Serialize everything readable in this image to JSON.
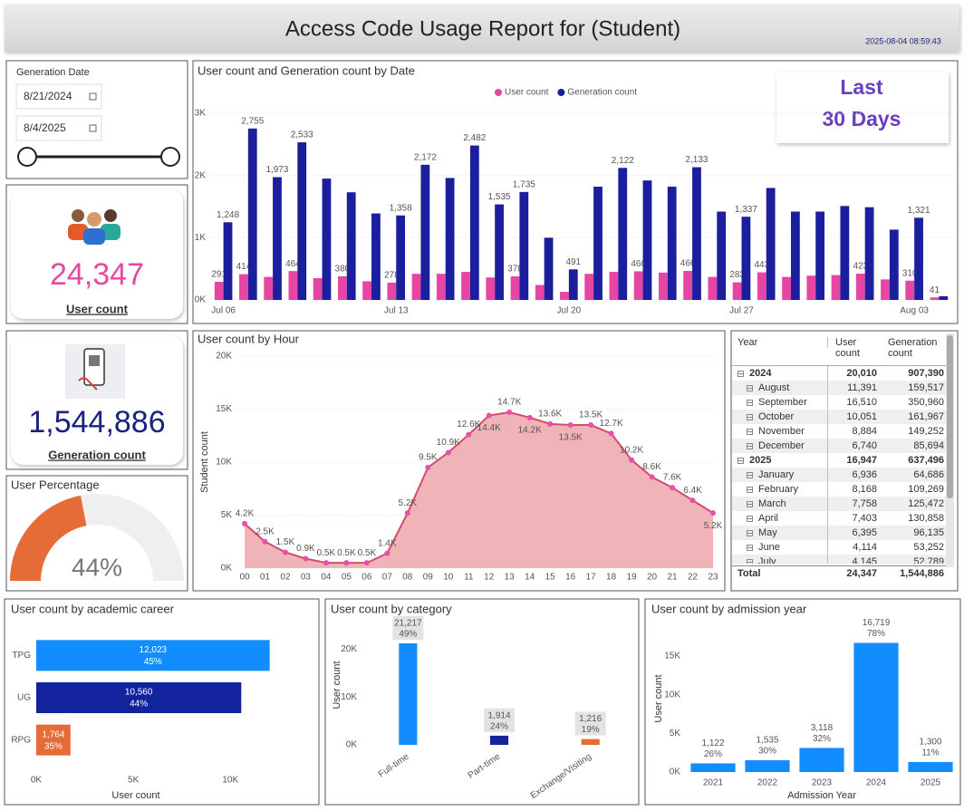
{
  "header": {
    "title": "Access Code Usage Report for (Student)",
    "timestamp": "2025-08-04 08:59:43"
  },
  "slicer": {
    "title": "Generation Date",
    "start": "8/21/2024",
    "end": "8/4/2025"
  },
  "kpis": [
    {
      "value": "24,347",
      "label": "User count"
    },
    {
      "value": "1,544,886",
      "label": "Generation count"
    }
  ],
  "gauge": {
    "title": "User Percentage",
    "value": 44,
    "value_label": "44%",
    "ylim": [
      0,
      100
    ],
    "color": "#e66c37"
  },
  "filter_button": {
    "lines": [
      "Last",
      "30 Days"
    ]
  },
  "table": {
    "header": [
      "Year",
      "User count",
      "Generation count"
    ],
    "groups": [
      {
        "year": [
          "2024",
          "20,010",
          "907,390"
        ],
        "months": [
          [
            "August",
            "11,391",
            "159,517"
          ],
          [
            "September",
            "16,510",
            "350,960"
          ],
          [
            "October",
            "10,051",
            "161,967"
          ],
          [
            "November",
            "8,884",
            "149,252"
          ],
          [
            "December",
            "6,740",
            "85,694"
          ]
        ]
      },
      {
        "year": [
          "2025",
          "16,947",
          "637,496"
        ],
        "months": [
          [
            "January",
            "6,936",
            "64,686"
          ],
          [
            "February",
            "8,168",
            "109,269"
          ],
          [
            "March",
            "7,758",
            "125,472"
          ],
          [
            "April",
            "7,403",
            "130,858"
          ],
          [
            "May",
            "6,395",
            "96,135"
          ],
          [
            "June",
            "4,114",
            "53,252"
          ],
          [
            "July",
            "4,145",
            "52,789"
          ]
        ]
      }
    ],
    "total": [
      "Total",
      "24,347",
      "1,544,886"
    ]
  },
  "chart_data": [
    {
      "type": "bar",
      "title": "User count and Generation count by Date",
      "categories": [
        "Jul 06",
        null,
        null,
        null,
        null,
        null,
        null,
        "Jul 13",
        null,
        null,
        null,
        null,
        null,
        null,
        "Jul 20",
        null,
        null,
        null,
        null,
        null,
        null,
        "Jul 27",
        null,
        null,
        null,
        null,
        null,
        null,
        "Aug 03",
        null
      ],
      "series": [
        {
          "name": "User count",
          "color": "#e645a3",
          "values": [
            291,
            414,
            370,
            464,
            350,
            380,
            300,
            278,
            420,
            420,
            450,
            360,
            378,
            240,
            130,
            420,
            450,
            460,
            440,
            466,
            370,
            283,
            443,
            370,
            390,
            400,
            423,
            330,
            310,
            41
          ],
          "value_labels": [
            "291",
            "414",
            null,
            "464",
            null,
            "380",
            null,
            "278",
            null,
            null,
            null,
            null,
            "378",
            null,
            null,
            null,
            null,
            "460",
            null,
            "466",
            null,
            "283",
            "443",
            null,
            null,
            null,
            "423",
            null,
            "310",
            "41"
          ]
        },
        {
          "name": "Generation count",
          "color": "#1b1f9e",
          "values": [
            1248,
            2755,
            1973,
            2533,
            1950,
            1730,
            1390,
            1358,
            2172,
            1960,
            2482,
            1535,
            1735,
            1000,
            491,
            1820,
            2122,
            1920,
            1820,
            2133,
            1420,
            1337,
            1800,
            1420,
            1420,
            1510,
            1490,
            1130,
            1321,
            60
          ],
          "value_labels": [
            "1,248",
            "2,755",
            "1,973",
            "2,533",
            null,
            null,
            null,
            "1,358",
            "2,172",
            null,
            "2,482",
            "1,535",
            "1,735",
            null,
            "491",
            null,
            "2,122",
            null,
            null,
            "2,133",
            null,
            "1,337",
            null,
            null,
            null,
            null,
            null,
            null,
            "1,321",
            null
          ]
        }
      ],
      "ylim": [
        0,
        3000
      ],
      "yticks": [
        {
          "value": 0,
          "label": "0K"
        },
        {
          "value": 1000,
          "label": "1K"
        },
        {
          "value": 2000,
          "label": "2K"
        },
        {
          "value": 3000,
          "label": "3K"
        }
      ],
      "grid": true,
      "legend": "top"
    },
    {
      "type": "area",
      "title": "User count by Hour",
      "y_label": "Student count",
      "categories": [
        "00",
        "01",
        "02",
        "03",
        "04",
        "05",
        "06",
        "07",
        "08",
        "09",
        "10",
        "11",
        "12",
        "13",
        "14",
        "15",
        "16",
        "17",
        "18",
        "19",
        "20",
        "21",
        "22",
        "23"
      ],
      "values": [
        4200,
        2500,
        1500,
        900,
        500,
        500,
        500,
        1400,
        5200,
        9500,
        10900,
        12600,
        14400,
        14700,
        14200,
        13600,
        13500,
        13500,
        12700,
        10200,
        8600,
        7600,
        6400,
        5200
      ],
      "value_labels": [
        "4.2K",
        "2.5K",
        "1.5K",
        "0.9K",
        "0.5K",
        "0.5K",
        "0.5K",
        "1.4K",
        "5.2K",
        "9.5K",
        "10.9K",
        "12.6K",
        "14.4K",
        "14.7K",
        "14.2K",
        "13.6K",
        "13.5K",
        "13.5K",
        "12.7K",
        "10.2K",
        "8.6K",
        "7.6K",
        "6.4K",
        "5.2K"
      ],
      "color": "#d64b6b",
      "fill": "#efb3b8",
      "marker_color": "#e84fa8",
      "ylim": [
        0,
        20000
      ],
      "yticks": [
        {
          "value": 0,
          "label": "0K"
        },
        {
          "value": 5000,
          "label": "5K"
        },
        {
          "value": 10000,
          "label": "10K"
        },
        {
          "value": 15000,
          "label": "15K"
        },
        {
          "value": 20000,
          "label": "20K"
        }
      ],
      "grid": true
    },
    {
      "type": "hbar",
      "title": "User count by academic career",
      "x_label": "User count",
      "categories": [
        "TPG",
        "UG",
        "RPG"
      ],
      "values": [
        12023,
        10560,
        1764
      ],
      "value_labels": [
        "12,023",
        "10,560",
        "1,764"
      ],
      "percent_labels": [
        "45%",
        "44%",
        "35%"
      ],
      "colors": [
        "#118dff",
        "#12239e",
        "#e66c37"
      ],
      "xlim": [
        0,
        14000
      ],
      "xticks": [
        {
          "value": 0,
          "label": "0K"
        },
        {
          "value": 5000,
          "label": "5K"
        },
        {
          "value": 10000,
          "label": "10K"
        }
      ]
    },
    {
      "type": "bar",
      "title": "User count by category",
      "y_label": "User count",
      "categories": [
        "Full-time",
        "Part-time",
        "Exchange/Visiting"
      ],
      "values": [
        21217,
        1914,
        1216
      ],
      "value_labels": [
        "21,217",
        "1,914",
        "1,216"
      ],
      "percent_labels": [
        "49%",
        "24%",
        "19%"
      ],
      "colors": [
        "#118dff",
        "#12239e",
        "#e66c37"
      ],
      "ylim": [
        0,
        25000
      ],
      "yticks": [
        {
          "value": 0,
          "label": "0K"
        },
        {
          "value": 10000,
          "label": "10K"
        },
        {
          "value": 20000,
          "label": "20K"
        }
      ]
    },
    {
      "type": "bar",
      "title": "User count by admission year",
      "x_label": "Admission Year",
      "y_label": "User count",
      "categories": [
        "2021",
        "2022",
        "2023",
        "2024",
        "2025"
      ],
      "values": [
        1122,
        1535,
        3118,
        16719,
        1300
      ],
      "value_labels": [
        "1,122",
        "1,535",
        "3,118",
        "16,719",
        "1,300"
      ],
      "percent_labels": [
        "26%",
        "30%",
        "32%",
        "78%",
        "11%"
      ],
      "color": "#118dff",
      "ylim": [
        0,
        19000
      ],
      "yticks": [
        {
          "value": 0,
          "label": "0K"
        },
        {
          "value": 5000,
          "label": "5K"
        },
        {
          "value": 10000,
          "label": "10K"
        },
        {
          "value": 15000,
          "label": "15K"
        }
      ]
    }
  ]
}
